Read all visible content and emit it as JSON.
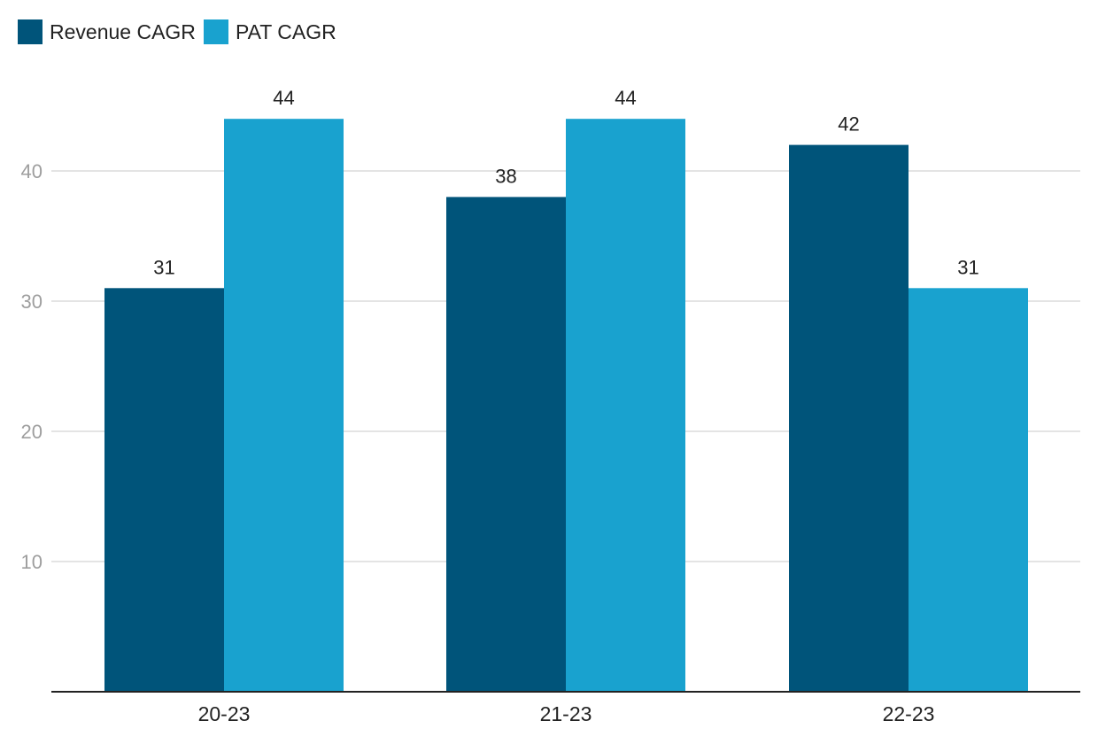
{
  "chart_data": {
    "type": "bar",
    "categories": [
      "20-23",
      "21-23",
      "22-23"
    ],
    "series": [
      {
        "name": "Revenue CAGR",
        "values": [
          31,
          38,
          42
        ],
        "color": "#00547a"
      },
      {
        "name": "PAT CAGR",
        "values": [
          44,
          44,
          31
        ],
        "color": "#19a2cf"
      }
    ],
    "y_ticks": [
      10,
      20,
      30,
      40
    ],
    "ylim": [
      0,
      40
    ],
    "grid": true,
    "legend": "top-left",
    "data_labels": true
  }
}
